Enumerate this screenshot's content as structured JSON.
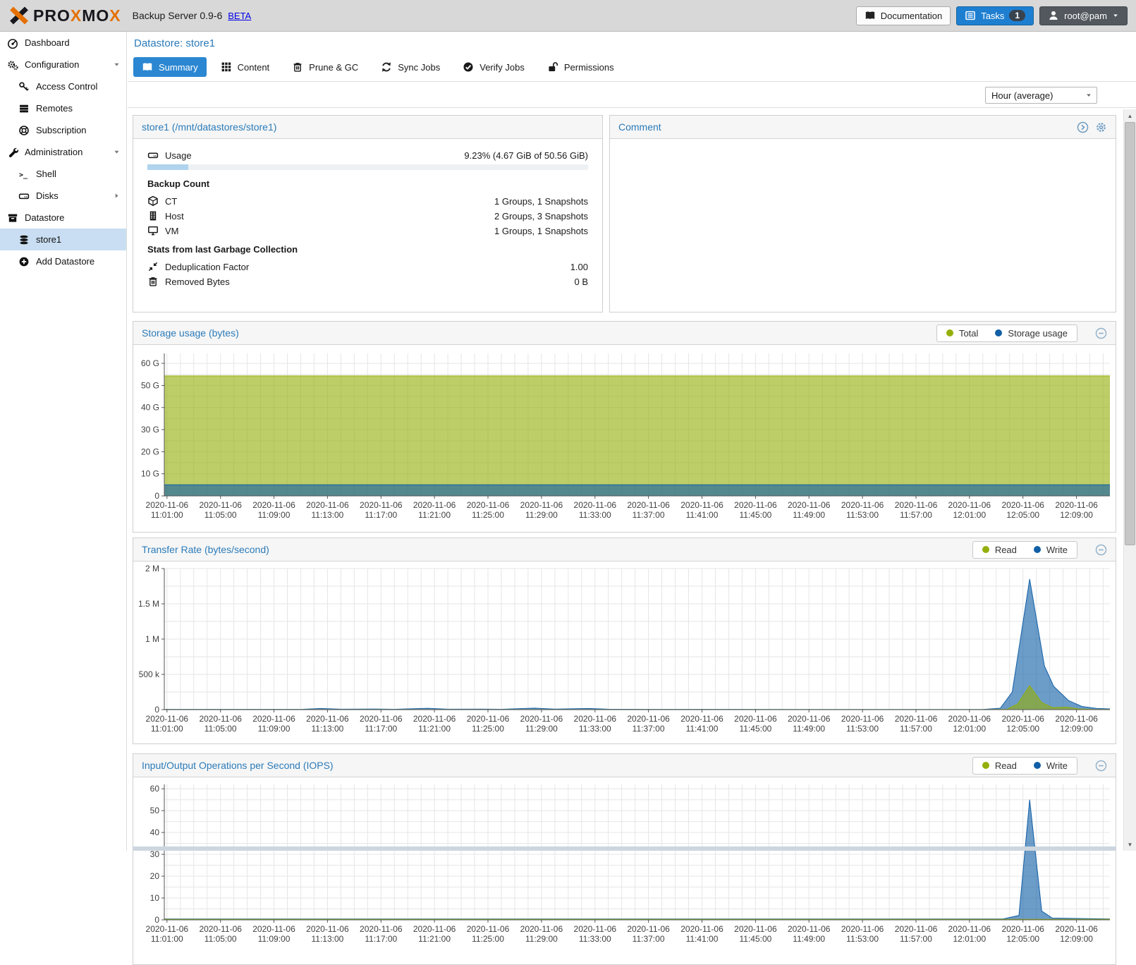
{
  "app": {
    "logo": "PROXMOX",
    "product": "Backup Server 0.9-6",
    "beta": "BETA"
  },
  "header": {
    "documentation": "Documentation",
    "tasks": "Tasks",
    "tasks_count": "1",
    "user": "root@pam"
  },
  "sidebar": {
    "items": [
      {
        "label": "Dashboard",
        "icon": "tachometer-icon",
        "level": 0
      },
      {
        "label": "Configuration",
        "icon": "gears-icon",
        "level": 0,
        "caret": "down"
      },
      {
        "label": "Access Control",
        "icon": "key-icon",
        "level": 1
      },
      {
        "label": "Remotes",
        "icon": "server-icon",
        "level": 1
      },
      {
        "label": "Subscription",
        "icon": "lifering-icon",
        "level": 1
      },
      {
        "label": "Administration",
        "icon": "wrench-icon",
        "level": 0,
        "caret": "down"
      },
      {
        "label": "Shell",
        "icon": "terminal-icon",
        "level": 1
      },
      {
        "label": "Disks",
        "icon": "hdd-icon",
        "level": 1,
        "caret": "right"
      },
      {
        "label": "Datastore",
        "icon": "archive-icon",
        "level": 0
      },
      {
        "label": "store1",
        "icon": "database-icon",
        "level": 1,
        "selected": true
      },
      {
        "label": "Add Datastore",
        "icon": "plus-circle-icon",
        "level": 1
      }
    ]
  },
  "page": {
    "title": "Datastore: store1",
    "tabs": [
      {
        "label": "Summary",
        "icon": "book-icon",
        "active": true
      },
      {
        "label": "Content",
        "icon": "grid-icon"
      },
      {
        "label": "Prune & GC",
        "icon": "trash-icon"
      },
      {
        "label": "Sync Jobs",
        "icon": "sync-icon"
      },
      {
        "label": "Verify Jobs",
        "icon": "check-circle-icon"
      },
      {
        "label": "Permissions",
        "icon": "unlock-icon"
      }
    ],
    "range_select": "Hour (average)"
  },
  "store_panel": {
    "title": "store1 (/mnt/datastores/store1)",
    "usage_label": "Usage",
    "usage_value": "9.23% (4.67 GiB of 50.56 GiB)",
    "usage_percent": 9.23,
    "backup_count_heading": "Backup Count",
    "backup_rows": [
      {
        "label": "CT",
        "value": "1 Groups, 1 Snapshots",
        "icon": "cube-icon"
      },
      {
        "label": "Host",
        "value": "2 Groups, 3 Snapshots",
        "icon": "building-icon"
      },
      {
        "label": "VM",
        "value": "1 Groups, 1 Snapshots",
        "icon": "desktop-icon"
      }
    ],
    "gc_heading": "Stats from last Garbage Collection",
    "gc_rows": [
      {
        "label": "Deduplication Factor",
        "value": "1.00",
        "icon": "compress-icon"
      },
      {
        "label": "Removed Bytes",
        "value": "0 B",
        "icon": "trash-icon"
      }
    ]
  },
  "comment_panel": {
    "title": "Comment",
    "body": ""
  },
  "chart_data": [
    {
      "id": "storage",
      "type": "area",
      "title": "Storage usage (bytes)",
      "legend": [
        {
          "label": "Total",
          "color": "#94ae0a"
        },
        {
          "label": "Storage usage",
          "color": "#115fa6"
        }
      ],
      "x_date": "2020-11-06",
      "x_ticks": [
        "11:01:00",
        "11:05:00",
        "11:09:00",
        "11:13:00",
        "11:17:00",
        "11:21:00",
        "11:25:00",
        "11:29:00",
        "11:33:00",
        "11:37:00",
        "11:41:00",
        "11:45:00",
        "11:49:00",
        "11:53:00",
        "11:57:00",
        "12:01:00",
        "12:05:00",
        "12:09:00"
      ],
      "x_start": 1,
      "x_step": 4,
      "domain": [
        0.8,
        71.5
      ],
      "ylim": [
        0,
        64500000000.0
      ],
      "y_minor": 5000000000.0,
      "y_ticks": [
        {
          "v": 0,
          "label": "0"
        },
        {
          "v": 10000000000.0,
          "label": "10 G"
        },
        {
          "v": 20000000000.0,
          "label": "20 G"
        },
        {
          "v": 30000000000.0,
          "label": "30 G"
        },
        {
          "v": 40000000000.0,
          "label": "40 G"
        },
        {
          "v": 50000000000.0,
          "label": "50 G"
        },
        {
          "v": 60000000000.0,
          "label": "60 G"
        }
      ],
      "series": [
        {
          "name": "Total",
          "color": "#94ae0a",
          "points": [
            [
              0.8,
              54300000000.0
            ],
            [
              71.5,
              54300000000.0
            ]
          ]
        },
        {
          "name": "Storage usage",
          "color": "#115fa6",
          "points": [
            [
              0.8,
              5020000000.0
            ],
            [
              71.5,
              5020000000.0
            ]
          ]
        }
      ]
    },
    {
      "id": "transfer",
      "type": "area",
      "title": "Transfer Rate (bytes/second)",
      "legend": [
        {
          "label": "Read",
          "color": "#94ae0a"
        },
        {
          "label": "Write",
          "color": "#115fa6"
        }
      ],
      "x_date": "2020-11-06",
      "x_ticks": [
        "11:01:00",
        "11:05:00",
        "11:09:00",
        "11:13:00",
        "11:17:00",
        "11:21:00",
        "11:25:00",
        "11:29:00",
        "11:33:00",
        "11:37:00",
        "11:41:00",
        "11:45:00",
        "11:49:00",
        "11:53:00",
        "11:57:00",
        "12:01:00",
        "12:05:00",
        "12:09:00"
      ],
      "x_start": 1,
      "x_step": 4,
      "domain": [
        0.8,
        71.5
      ],
      "ylim": [
        0,
        2000000.0
      ],
      "y_minor": 250000.0,
      "y_ticks": [
        {
          "v": 0,
          "label": "0"
        },
        {
          "v": 500000.0,
          "label": "500 k"
        },
        {
          "v": 1000000.0,
          "label": "1 M"
        },
        {
          "v": 1500000.0,
          "label": "1.5 M"
        },
        {
          "v": 2000000.0,
          "label": "2 M"
        }
      ],
      "series": [
        {
          "name": "Write",
          "color": "#115fa6",
          "points": [
            [
              0.8,
              4000
            ],
            [
              11,
              4000
            ],
            [
              12.5,
              16000
            ],
            [
              14,
              6000
            ],
            [
              16.5,
              9000
            ],
            [
              18,
              5000
            ],
            [
              20.5,
              19000
            ],
            [
              22,
              6000
            ],
            [
              24.5,
              8000
            ],
            [
              26,
              5000
            ],
            [
              28.5,
              21000
            ],
            [
              30,
              8000
            ],
            [
              32.5,
              16000
            ],
            [
              34,
              6000
            ],
            [
              37,
              4000
            ],
            [
              50,
              3000
            ],
            [
              62,
              3000
            ],
            [
              63.3,
              20000
            ],
            [
              64.2,
              250000
            ],
            [
              65.5,
              1850000
            ],
            [
              66.6,
              620000
            ],
            [
              67.3,
              330000
            ],
            [
              68.4,
              130000
            ],
            [
              69.4,
              45000
            ],
            [
              70.5,
              18000
            ],
            [
              71.5,
              10000
            ]
          ]
        },
        {
          "name": "Read",
          "color": "#94ae0a",
          "points": [
            [
              0.8,
              1000
            ],
            [
              62,
              1000
            ],
            [
              63.8,
              5000
            ],
            [
              64.6,
              80000
            ],
            [
              65.5,
              340000
            ],
            [
              66.4,
              100000
            ],
            [
              67.2,
              30000
            ],
            [
              68.3,
              35000
            ],
            [
              69.2,
              10000
            ],
            [
              70.2,
              4000
            ],
            [
              71.5,
              2000
            ]
          ]
        }
      ]
    },
    {
      "id": "iops",
      "type": "area",
      "title": "Input/Output Operations per Second (IOPS)",
      "legend": [
        {
          "label": "Read",
          "color": "#94ae0a"
        },
        {
          "label": "Write",
          "color": "#115fa6"
        }
      ],
      "x_date": "2020-11-06",
      "x_ticks": [
        "11:01:00",
        "11:05:00",
        "11:09:00",
        "11:13:00",
        "11:17:00",
        "11:21:00",
        "11:25:00",
        "11:29:00",
        "11:33:00",
        "11:37:00",
        "11:41:00",
        "11:45:00",
        "11:49:00",
        "11:53:00",
        "11:57:00",
        "12:01:00",
        "12:05:00",
        "12:09:00"
      ],
      "x_start": 1,
      "x_step": 4,
      "domain": [
        0.8,
        71.5
      ],
      "ylim": [
        0,
        62
      ],
      "y_minor": 5,
      "y_ticks": [
        {
          "v": 0,
          "label": "0"
        },
        {
          "v": 10,
          "label": "10"
        },
        {
          "v": 20,
          "label": "20"
        },
        {
          "v": 30,
          "label": "30"
        },
        {
          "v": 40,
          "label": "40"
        },
        {
          "v": 50,
          "label": "50"
        },
        {
          "v": 60,
          "label": "60"
        }
      ],
      "series": [
        {
          "name": "Write",
          "color": "#115fa6",
          "points": [
            [
              0.8,
              0.4
            ],
            [
              63.5,
              0.4
            ],
            [
              64.7,
              2
            ],
            [
              65.5,
              55
            ],
            [
              66.4,
              4
            ],
            [
              67.2,
              0.8
            ],
            [
              71.5,
              0.4
            ]
          ]
        },
        {
          "name": "Read",
          "color": "#94ae0a",
          "points": [
            [
              0.8,
              0.25
            ],
            [
              71.5,
              0.25
            ]
          ]
        }
      ]
    }
  ],
  "colors": {
    "accent": "#2b87d2",
    "title_blue": "#2b7bb9",
    "series_green": "#94ae0a",
    "series_blue": "#115fa6",
    "selected_bg": "#c9def2",
    "proxmox_orange": "#e57000"
  }
}
